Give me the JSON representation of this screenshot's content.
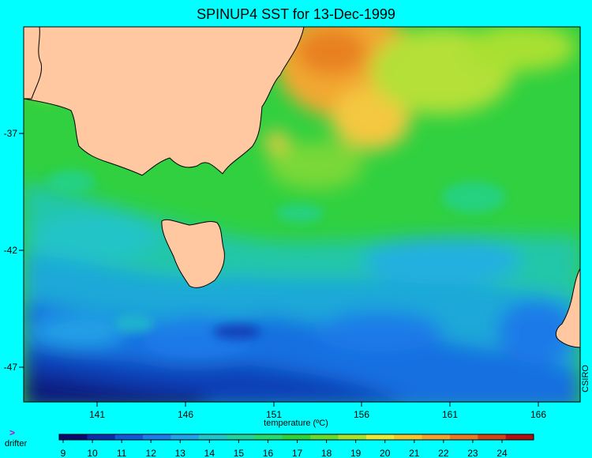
{
  "title": "SPINUP4 SST for 13-Dec-1999",
  "axes": {
    "x_ticks": [
      "141",
      "146",
      "151",
      "156",
      "161",
      "166"
    ],
    "y_ticks": [
      "-37",
      "-42",
      "-47"
    ]
  },
  "legend": {
    "label": "temperature (ºC)",
    "ticks": [
      "9",
      "10",
      "11",
      "12",
      "13",
      "14",
      "15",
      "16",
      "17",
      "18",
      "19",
      "20",
      "21",
      "22",
      "23",
      "24"
    ],
    "colors": [
      "#0a0a6e",
      "#0d2aa8",
      "#1456d6",
      "#1f7ae8",
      "#23a0e6",
      "#22c4c8",
      "#22d29a",
      "#2ad86a",
      "#30d036",
      "#6ad830",
      "#a8e030",
      "#e8e83a",
      "#f4c430",
      "#f2a030",
      "#e87824",
      "#d04418",
      "#b01010"
    ]
  },
  "drifter": {
    "marker": ">",
    "label": "drifter"
  },
  "credit": "CSIRO",
  "colors": {
    "background": "#00ffff",
    "land": "#ffc8a0"
  }
}
